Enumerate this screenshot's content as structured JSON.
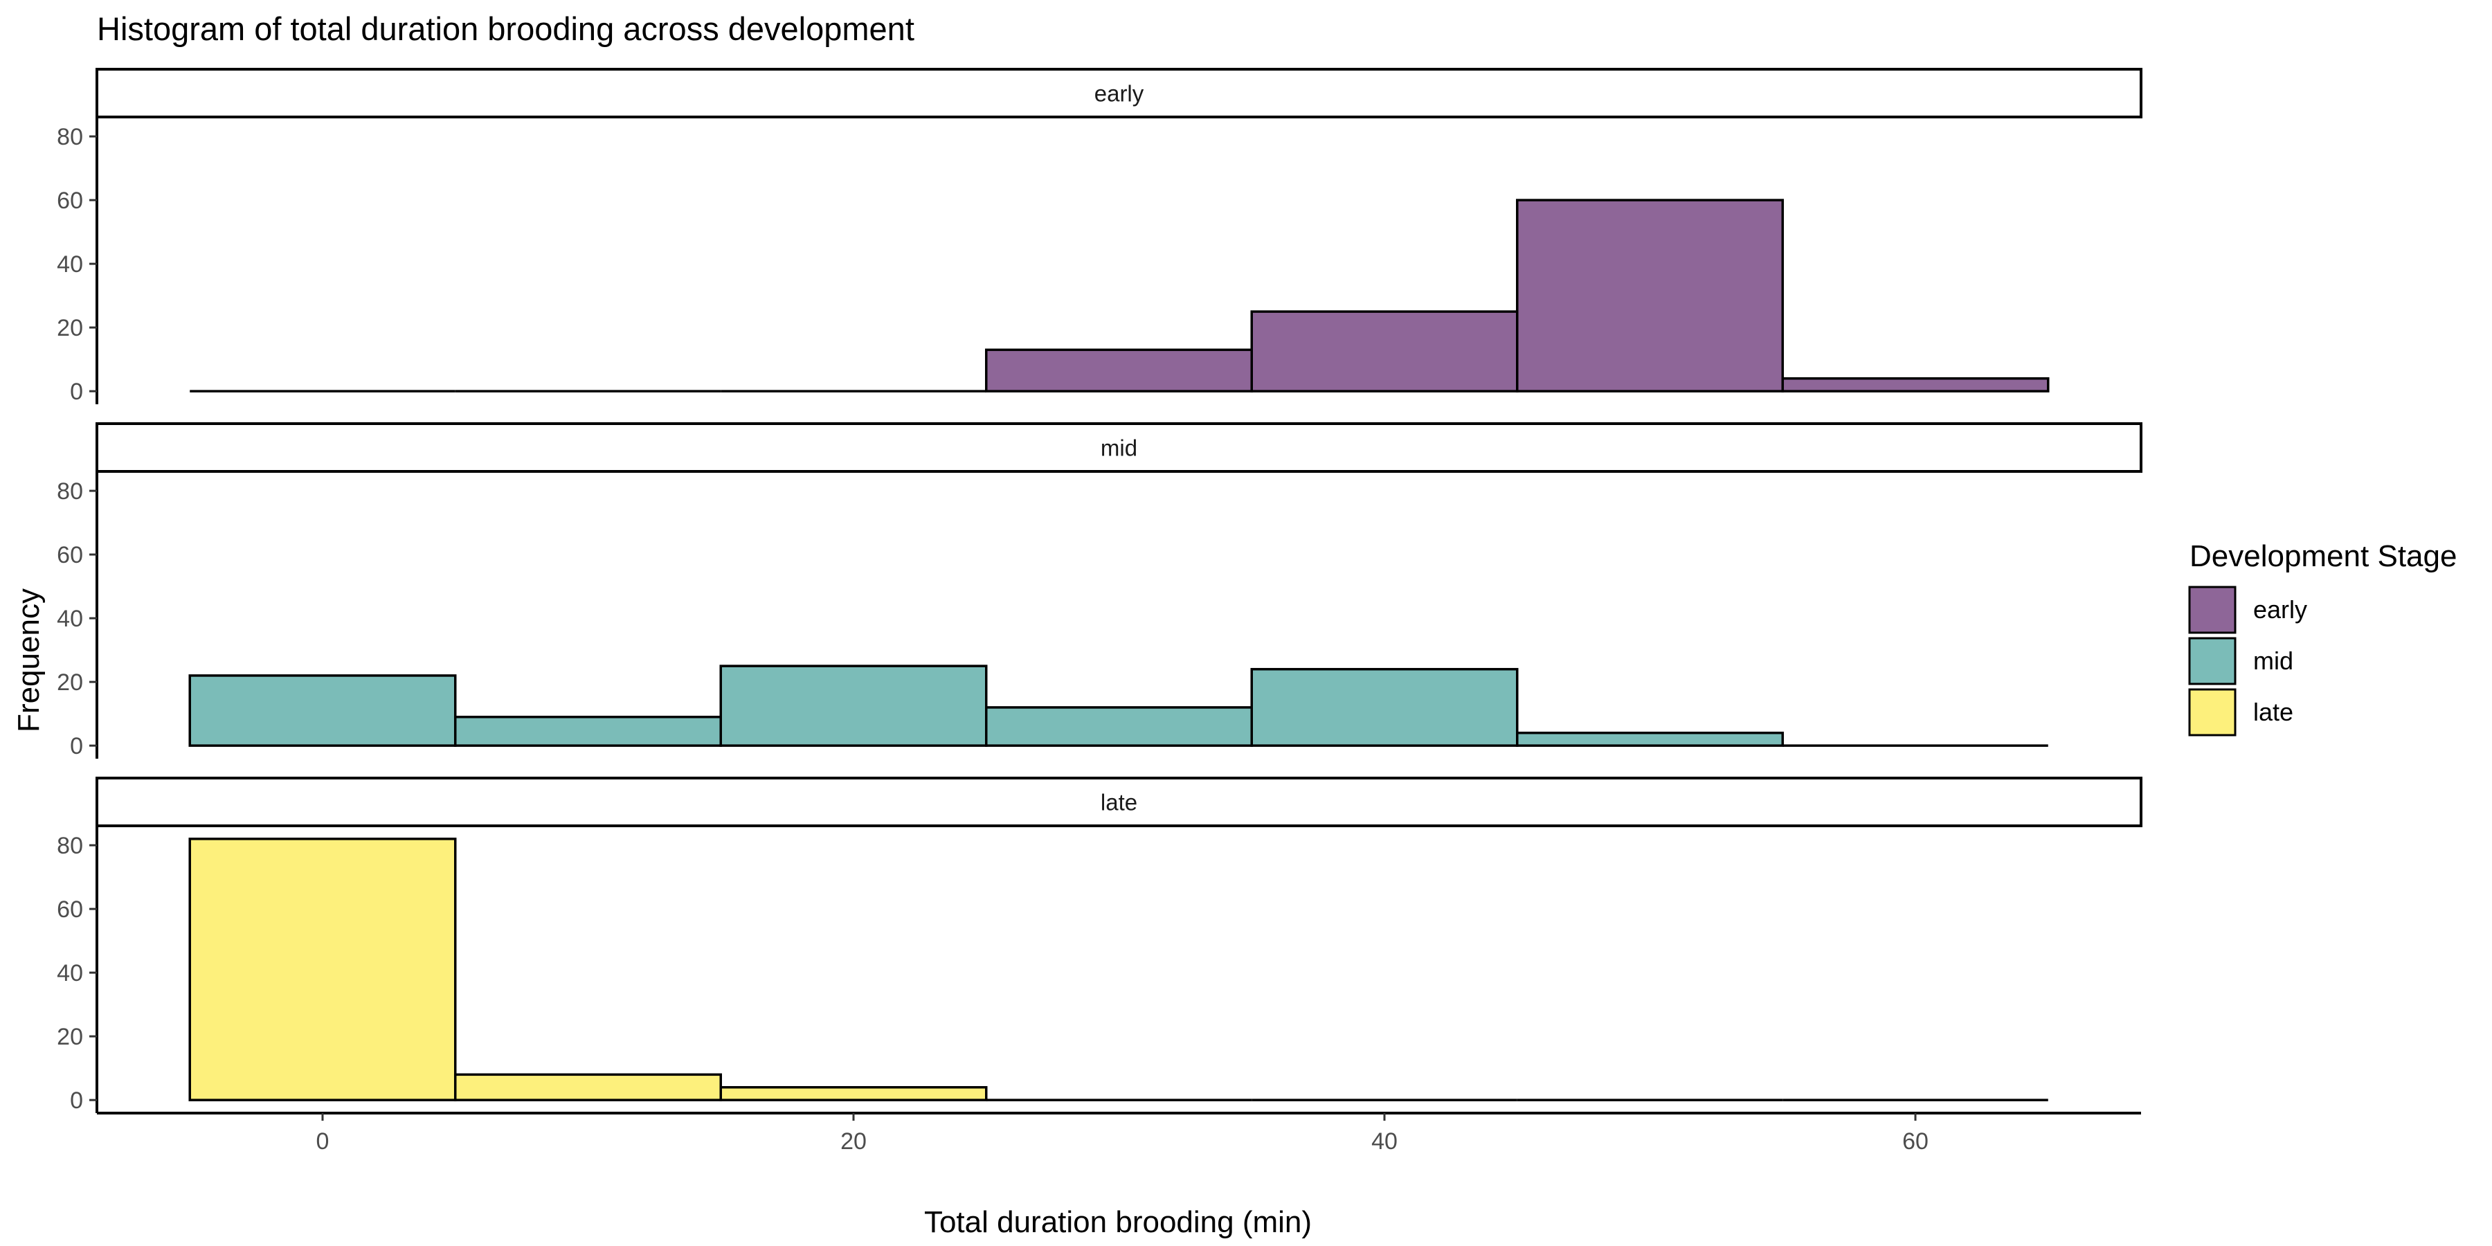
{
  "chart_data": {
    "type": "bar",
    "subtype": "faceted-histogram",
    "title": "Histogram of total duration brooding across development",
    "xlabel": "Total duration brooding (min)",
    "ylabel": "Frequency",
    "bin_width": 10,
    "bin_edges": [
      -5,
      5,
      15,
      25,
      35,
      45,
      55,
      65
    ],
    "bin_centers": [
      0,
      10,
      20,
      30,
      40,
      50,
      60
    ],
    "xlim": [
      -8.5,
      68.5
    ],
    "ylim": [
      -4.1,
      86.1
    ],
    "x_ticks": [
      0,
      20,
      40,
      60
    ],
    "x_tick_labels": [
      "0",
      "20",
      "40",
      "60"
    ],
    "y_ticks": [
      0,
      20,
      40,
      60,
      80
    ],
    "y_tick_labels": [
      "0",
      "20",
      "40",
      "60",
      "80"
    ],
    "legend": {
      "title": "Development Stage",
      "position": "right",
      "entries": [
        "early",
        "mid",
        "late"
      ]
    },
    "series": [
      {
        "name": "early",
        "color": "#8E6698",
        "values": [
          0,
          0,
          0,
          13,
          25,
          60,
          4
        ]
      },
      {
        "name": "mid",
        "color": "#7BBCB8",
        "values": [
          22,
          9,
          25,
          12,
          24,
          4,
          0
        ]
      },
      {
        "name": "late",
        "color": "#FDF07C",
        "values": [
          82,
          8,
          4,
          0,
          0,
          0,
          0
        ]
      }
    ]
  }
}
